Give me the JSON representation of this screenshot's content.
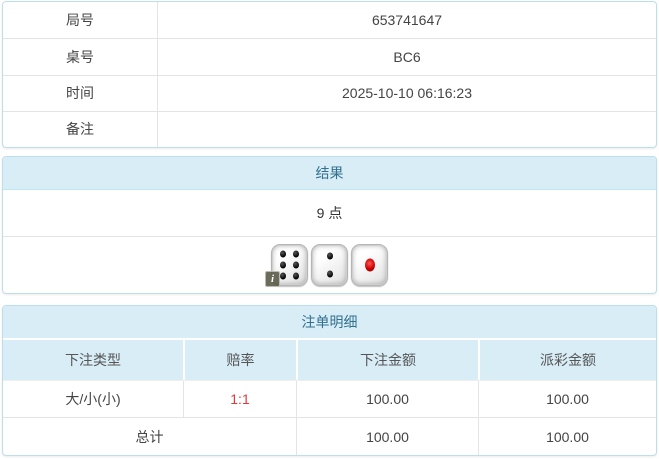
{
  "colors": {
    "panel_border": "#bcdfec",
    "heading_bg": "#d9edf7",
    "heading_text": "#31708f",
    "odds_red": "#e4393c",
    "body_text": "#444444"
  },
  "info_table": {
    "rows": [
      {
        "label": "局号",
        "value": "653741647"
      },
      {
        "label": "桌号",
        "value": "BC6"
      },
      {
        "label": "时间",
        "value": "2025-10-10 06:16:23"
      },
      {
        "label": "备注",
        "value": ""
      }
    ]
  },
  "result_panel": {
    "title": "结果",
    "points": "9 点",
    "dice": [
      {
        "value": 6,
        "pip_color": "black",
        "badge": "i"
      },
      {
        "value": 2,
        "pip_color": "black"
      },
      {
        "value": 1,
        "pip_color": "red"
      }
    ]
  },
  "bet_panel": {
    "title": "注单明细",
    "columns": [
      "下注类型",
      "赔率",
      "下注金额",
      "派彩金额"
    ],
    "rows": [
      {
        "type": "大/小(小)",
        "odds": "1:1",
        "bet_amount": "100.00",
        "payout_amount": "100.00"
      }
    ],
    "total": {
      "label": "总计",
      "bet_amount": "100.00",
      "payout_amount": "100.00"
    }
  }
}
